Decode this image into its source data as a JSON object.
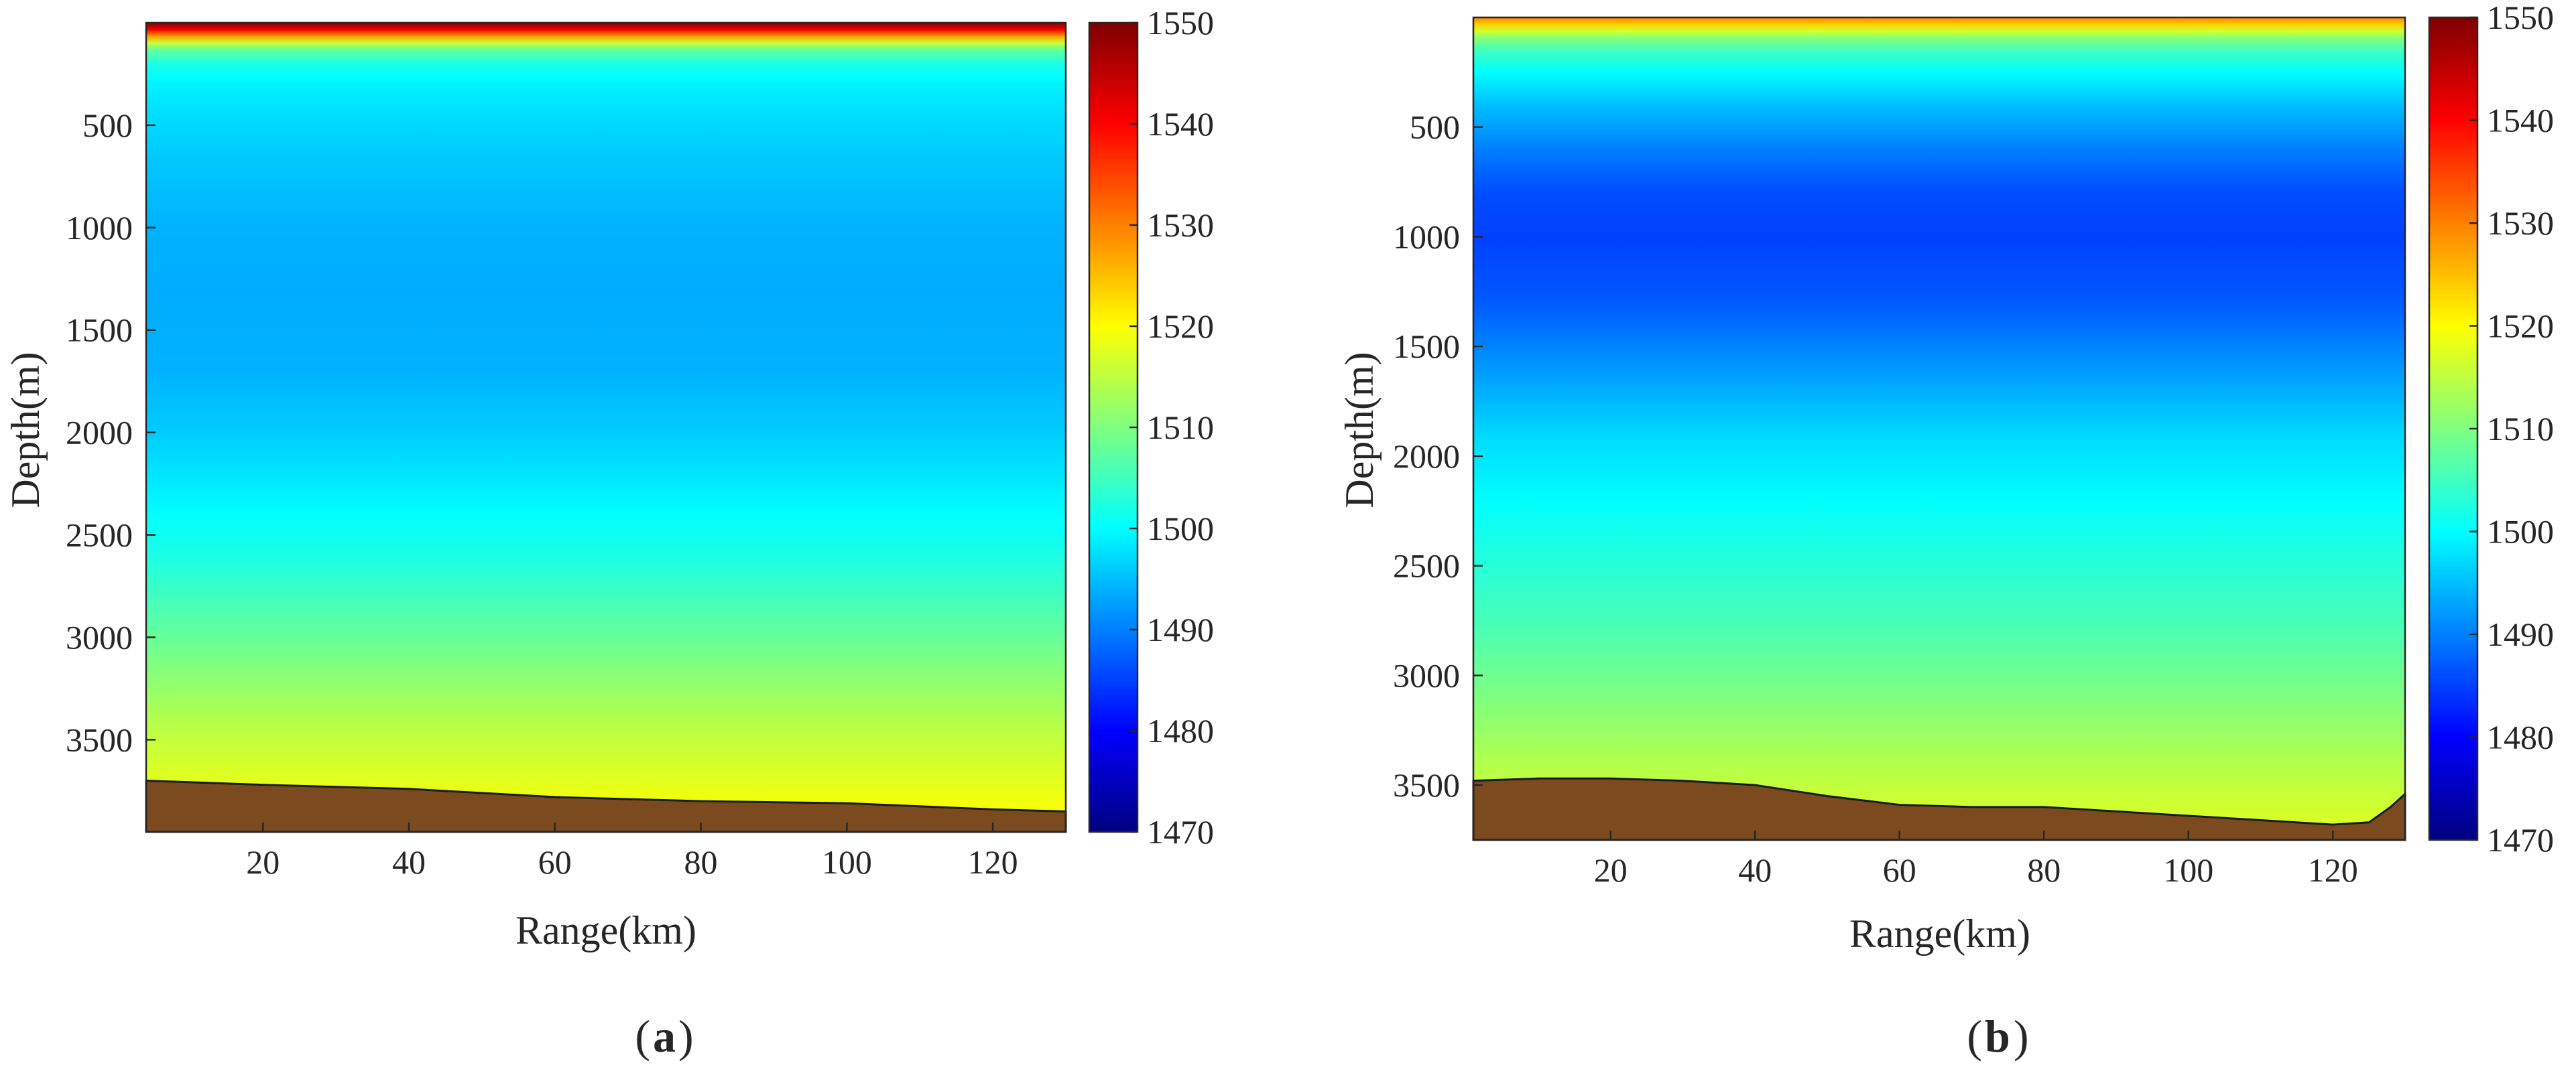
{
  "chart_data": [
    {
      "type": "heatmap",
      "panel_label": "a",
      "title": "",
      "xlabel": "Range(km)",
      "ylabel": "Depth(m)",
      "xlim": [
        4,
        130
      ],
      "ylim": [
        3950,
        0
      ],
      "xticks": [
        20,
        40,
        60,
        80,
        100,
        120
      ],
      "yticks": [
        500,
        1000,
        1500,
        2000,
        2500,
        3000,
        3500
      ],
      "colorbar": {
        "range": [
          1470,
          1550
        ],
        "ticks": [
          1470,
          1480,
          1490,
          1500,
          1510,
          1520,
          1530,
          1540,
          1550
        ],
        "colormap": "jet"
      },
      "sound_speed_profile": {
        "depth": [
          0,
          30,
          60,
          90,
          130,
          200,
          300,
          500,
          700,
          1000,
          1300,
          1700,
          2000,
          2300,
          2600,
          3000,
          3400,
          3800,
          3950
        ],
        "speed": [
          1550,
          1542,
          1530,
          1518,
          1508,
          1502,
          1499,
          1497,
          1495.5,
          1494,
          1493.5,
          1494,
          1496,
          1499,
          1502,
          1508,
          1514,
          1519,
          1520
        ]
      },
      "seabed": {
        "color": "#7b4a1f",
        "range": [
          4,
          20,
          40,
          60,
          80,
          100,
          120,
          130
        ],
        "depth": [
          3700,
          3720,
          3740,
          3780,
          3800,
          3810,
          3840,
          3850
        ]
      }
    },
    {
      "type": "heatmap",
      "panel_label": "b",
      "title": "",
      "xlabel": "Range(km)",
      "ylabel": "Depth(m)",
      "xlim": [
        1,
        130
      ],
      "ylim": [
        3750,
        0
      ],
      "xticks": [
        20,
        40,
        60,
        80,
        100,
        120
      ],
      "yticks": [
        500,
        1000,
        1500,
        2000,
        2500,
        3000,
        3500
      ],
      "colorbar": {
        "range": [
          1470,
          1550
        ],
        "ticks": [
          1470,
          1480,
          1490,
          1500,
          1510,
          1520,
          1530,
          1540,
          1550
        ],
        "colormap": "jet"
      },
      "sound_speed_profile": {
        "depth": [
          0,
          40,
          80,
          150,
          250,
          400,
          600,
          800,
          1000,
          1300,
          1600,
          1900,
          2200,
          2500,
          2800,
          3100,
          3400,
          3750
        ],
        "speed": [
          1530,
          1522,
          1512,
          1505,
          1500,
          1495,
          1490,
          1486,
          1485,
          1487,
          1492,
          1497,
          1500,
          1503,
          1506,
          1510,
          1514,
          1518
        ]
      },
      "seabed": {
        "color": "#7b4a1f",
        "range": [
          1,
          10,
          20,
          30,
          40,
          50,
          60,
          70,
          80,
          90,
          100,
          110,
          120,
          125,
          128,
          130
        ],
        "depth": [
          3480,
          3470,
          3470,
          3480,
          3500,
          3550,
          3590,
          3600,
          3600,
          3620,
          3640,
          3660,
          3680,
          3670,
          3600,
          3540
        ]
      }
    }
  ]
}
